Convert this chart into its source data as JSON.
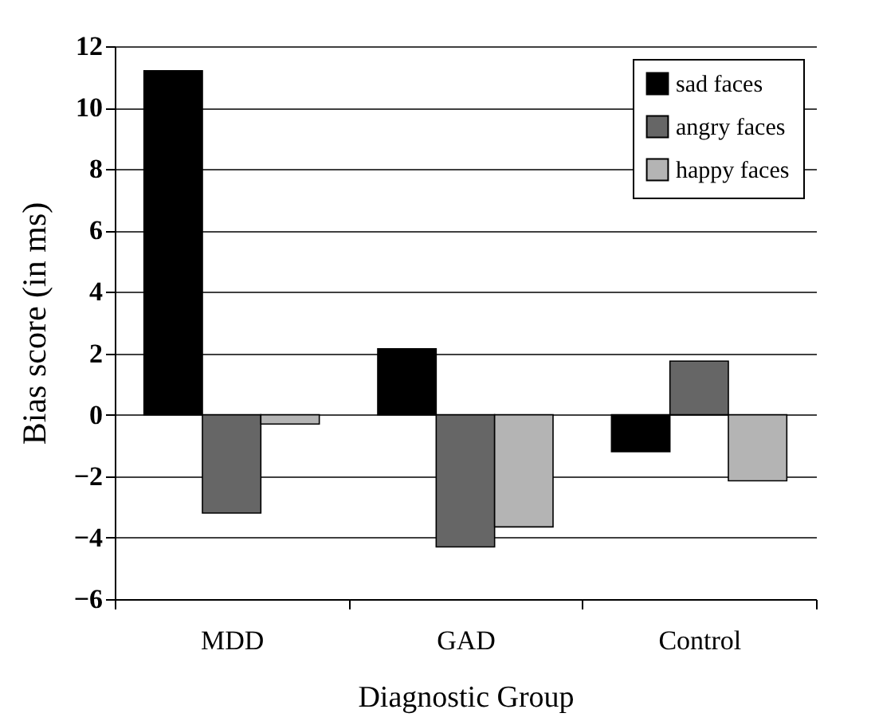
{
  "chart_data": {
    "type": "bar",
    "xlabel": "Diagnostic Group",
    "ylabel": "Bias score (in ms)",
    "categories": [
      "MDD",
      "GAD",
      "Control"
    ],
    "series": [
      {
        "name": "sad faces",
        "color": "#000000",
        "values": [
          11.2,
          2.15,
          -1.2
        ]
      },
      {
        "name": "angry faces",
        "color": "#666666",
        "values": [
          -3.2,
          -4.3,
          1.75
        ]
      },
      {
        "name": "happy faces",
        "color": "#b4b4b4",
        "values": [
          -0.3,
          -3.65,
          -2.15
        ]
      }
    ],
    "ylim": [
      -6,
      12
    ],
    "yticks": [
      -6,
      -4,
      -2,
      0,
      2,
      4,
      6,
      8,
      10,
      12
    ],
    "grid": "y",
    "legend": "top right"
  }
}
